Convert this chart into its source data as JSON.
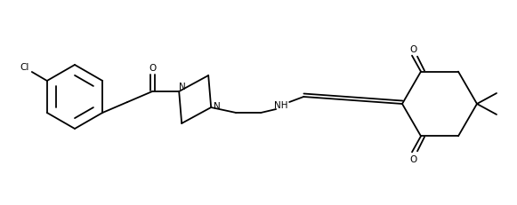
{
  "bg_color": "#ffffff",
  "line_color": "#000000",
  "line_width": 1.3,
  "figsize": [
    5.78,
    2.28
  ],
  "dpi": 100
}
